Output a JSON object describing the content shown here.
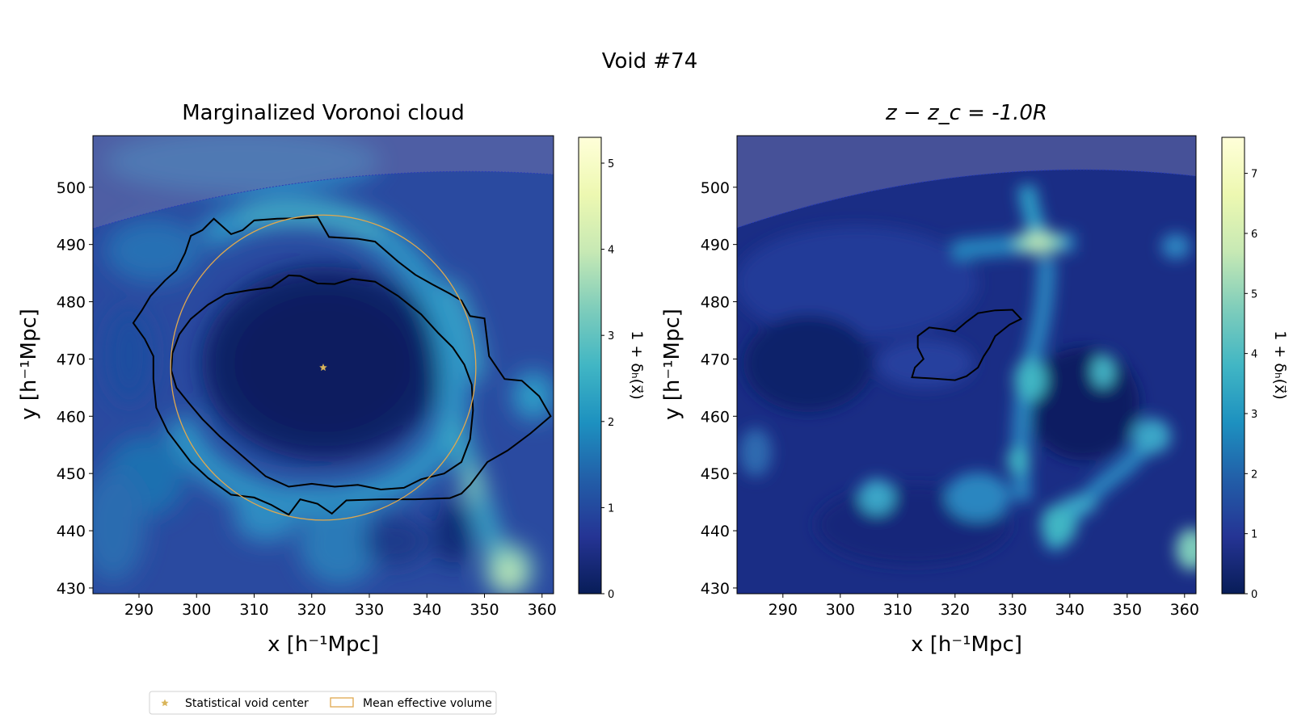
{
  "figure": {
    "title": "Void #74"
  },
  "legend": {
    "items": [
      {
        "label": "Statistical void center",
        "marker": "star",
        "color": "#d9b55a"
      },
      {
        "label": "Mean effective volume",
        "marker": "circle-outline",
        "color": "#e0a84e"
      }
    ]
  },
  "colors": {
    "colormap": [
      "#081d58",
      "#253494",
      "#225ea8",
      "#1d91c0",
      "#41b6c4",
      "#7fcdbb",
      "#c7e9b4",
      "#edf8b1",
      "#ffffd9"
    ],
    "circle": "#e0a84e",
    "star": "#d9b55a",
    "contour": "#000000",
    "mask": "#6b6fa8"
  },
  "chart_data": [
    {
      "type": "heatmap",
      "title": "Marginalized Voronoi cloud",
      "xlabel": "x [h⁻¹Mpc]",
      "ylabel": "y [h⁻¹Mpc]",
      "xlim": [
        282,
        362
      ],
      "ylim": [
        429,
        509
      ],
      "xticks": [
        290,
        300,
        310,
        320,
        330,
        340,
        350,
        360
      ],
      "yticks": [
        430,
        440,
        450,
        460,
        470,
        480,
        490,
        500
      ],
      "colorbar": {
        "label": "1 + δₕ(x⃗)",
        "range": [
          0,
          5.3
        ],
        "ticks": [
          0,
          1,
          2,
          3,
          4,
          5
        ]
      },
      "void_center": [
        322,
        468.5
      ],
      "effective_radius": 26.5,
      "inner_contour": [
        [
          318,
          484.5
        ],
        [
          321,
          483.2
        ],
        [
          324,
          483.1
        ],
        [
          327,
          484
        ],
        [
          331,
          483.5
        ],
        [
          335,
          481
        ],
        [
          339,
          477.8
        ],
        [
          342,
          474.5
        ],
        [
          344.5,
          472
        ],
        [
          346.5,
          469
        ],
        [
          347.8,
          465.5
        ],
        [
          348,
          461
        ],
        [
          347.5,
          456
        ],
        [
          346,
          452
        ],
        [
          343,
          450
        ],
        [
          339,
          449
        ],
        [
          336,
          447.5
        ],
        [
          332,
          447.2
        ],
        [
          328,
          448
        ],
        [
          324,
          447.7
        ],
        [
          320,
          448.2
        ],
        [
          316,
          447.7
        ],
        [
          312,
          449.5
        ],
        [
          308,
          453
        ],
        [
          304,
          456.5
        ],
        [
          301,
          459.5
        ],
        [
          298.5,
          462.5
        ],
        [
          296.5,
          465
        ],
        [
          295.6,
          468
        ],
        [
          295.8,
          471
        ],
        [
          297,
          474.3
        ],
        [
          299,
          477
        ],
        [
          302,
          479.5
        ],
        [
          305,
          481.3
        ],
        [
          309,
          482
        ],
        [
          313,
          482.5
        ],
        [
          316,
          484.6
        ],
        [
          318,
          484.5
        ]
      ],
      "outer_contour": [
        [
          303,
          494.5
        ],
        [
          306,
          491.8
        ],
        [
          308,
          492.5
        ],
        [
          310,
          494.2
        ],
        [
          314,
          494.5
        ],
        [
          318,
          494.6
        ],
        [
          321,
          494.8
        ],
        [
          323,
          491.3
        ],
        [
          328,
          491
        ],
        [
          331,
          490.5
        ],
        [
          335,
          487
        ],
        [
          338,
          484.7
        ],
        [
          341,
          483
        ],
        [
          344,
          481.4
        ],
        [
          346,
          480.2
        ],
        [
          347.5,
          477.5
        ],
        [
          350,
          477.1
        ],
        [
          350.8,
          470.5
        ],
        [
          353.5,
          466.5
        ],
        [
          356.5,
          466.2
        ],
        [
          359.5,
          463.5
        ],
        [
          361.5,
          460
        ],
        [
          358,
          457
        ],
        [
          354,
          454
        ],
        [
          350.5,
          452
        ],
        [
          347.5,
          448
        ],
        [
          346,
          446.5
        ],
        [
          344,
          445.7
        ],
        [
          338,
          445.5
        ],
        [
          332,
          445.5
        ],
        [
          326,
          445.3
        ],
        [
          323.5,
          443
        ],
        [
          321,
          444.7
        ],
        [
          318,
          445.5
        ],
        [
          316,
          442.8
        ],
        [
          313,
          444.5
        ],
        [
          310,
          445.8
        ],
        [
          306,
          446.3
        ],
        [
          302,
          449.2
        ],
        [
          299,
          452
        ],
        [
          295,
          457.3
        ],
        [
          293,
          461.5
        ],
        [
          292.5,
          466.5
        ],
        [
          292.5,
          470.5
        ],
        [
          291,
          473.5
        ],
        [
          289,
          476.3
        ],
        [
          290.5,
          478.5
        ],
        [
          292,
          481
        ],
        [
          294.5,
          483.7
        ],
        [
          296.5,
          485.5
        ],
        [
          298,
          488.5
        ],
        [
          299,
          491.5
        ],
        [
          301,
          492.5
        ],
        [
          303,
          494.5
        ]
      ]
    },
    {
      "type": "heatmap",
      "title": "z − z_c = -1.0R",
      "xlabel": "x [h⁻¹Mpc]",
      "ylabel": "y [h⁻¹Mpc]",
      "xlim": [
        282,
        362
      ],
      "ylim": [
        429,
        509
      ],
      "xticks": [
        290,
        300,
        310,
        320,
        330,
        340,
        350,
        360
      ],
      "yticks": [
        430,
        440,
        450,
        460,
        470,
        480,
        490,
        500
      ],
      "colorbar": {
        "label": "1 + δₕ(x⃗)",
        "range": [
          0,
          7.6
        ],
        "ticks": [
          0,
          1,
          2,
          3,
          4,
          5,
          6,
          7
        ]
      },
      "contour": [
        [
          313.5,
          474
        ],
        [
          315.5,
          475.5
        ],
        [
          318,
          475.2
        ],
        [
          320,
          474.8
        ],
        [
          322,
          476.5
        ],
        [
          324,
          478
        ],
        [
          327,
          478.5
        ],
        [
          330,
          478.6
        ],
        [
          331.5,
          477
        ],
        [
          329.5,
          476
        ],
        [
          327,
          474
        ],
        [
          326,
          472
        ],
        [
          325,
          470.5
        ],
        [
          324,
          468.5
        ],
        [
          322,
          467
        ],
        [
          320,
          466.3
        ],
        [
          316,
          466.6
        ],
        [
          312.5,
          466.8
        ],
        [
          313,
          468.5
        ],
        [
          314.5,
          470
        ],
        [
          313.5,
          472
        ],
        [
          313.5,
          474
        ]
      ]
    }
  ]
}
